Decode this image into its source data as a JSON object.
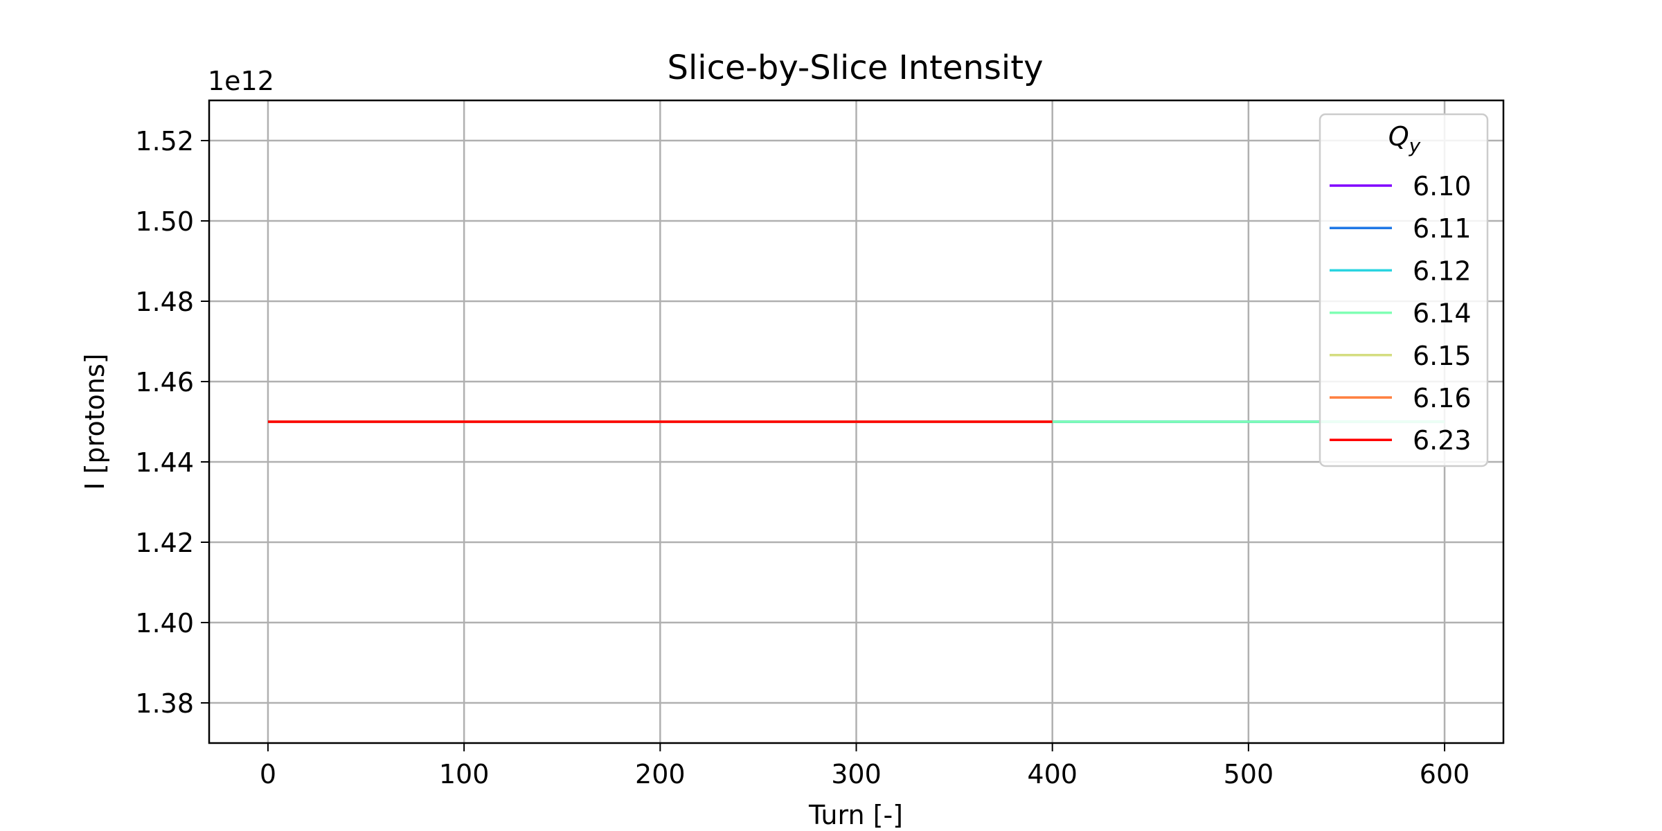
{
  "chart_data": {
    "type": "line",
    "title": "Slice-by-Slice Intensity",
    "xlabel": "Turn [-]",
    "ylabel": "I [protons]",
    "y_offset_label": "1e12",
    "xlim": [
      -30,
      630
    ],
    "ylim": [
      1.37,
      1.53
    ],
    "x_ticks": [
      0,
      100,
      200,
      300,
      400,
      500,
      600
    ],
    "y_ticks": [
      1.38,
      1.4,
      1.42,
      1.44,
      1.46,
      1.48,
      1.5,
      1.52
    ],
    "y_tick_labels": [
      "1.38",
      "1.40",
      "1.42",
      "1.44",
      "1.46",
      "1.48",
      "1.50",
      "1.52"
    ],
    "grid": true,
    "legend": {
      "title": "Q",
      "title_subscript": "y",
      "placement": "top-right"
    },
    "series": [
      {
        "name": "6.10",
        "color": "#8000ff",
        "x": [
          0,
          600
        ],
        "y": [
          1.45,
          1.45
        ]
      },
      {
        "name": "6.11",
        "color": "#1f78e6",
        "x": [
          0,
          600
        ],
        "y": [
          1.45,
          1.45
        ]
      },
      {
        "name": "6.12",
        "color": "#2ad4e0",
        "x": [
          0,
          600
        ],
        "y": [
          1.45,
          1.45
        ]
      },
      {
        "name": "6.14",
        "color": "#80ffb4",
        "x": [
          0,
          600
        ],
        "y": [
          1.45,
          1.45
        ]
      },
      {
        "name": "6.15",
        "color": "#d4dd80",
        "x": [
          0,
          400
        ],
        "y": [
          1.45,
          1.45
        ]
      },
      {
        "name": "6.16",
        "color": "#ff7f3f",
        "x": [
          0,
          400
        ],
        "y": [
          1.45,
          1.45
        ]
      },
      {
        "name": "6.23",
        "color": "#ff0000",
        "x": [
          0,
          400
        ],
        "y": [
          1.45,
          1.45
        ]
      }
    ]
  }
}
